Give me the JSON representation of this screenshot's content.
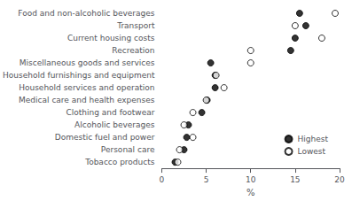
{
  "chart_data": {
    "type": "scatter",
    "orientation": "horizontal",
    "xlabel": "%",
    "categories": [
      "Food and non-alcoholic beverages",
      "Transport",
      "Current housing costs",
      "Recreation",
      "Miscellaneous goods and services",
      "Household furnishings and equipment",
      "Household services and operation",
      "Medical care and health expenses",
      "Clothing and footwear",
      "Alcoholic beverages",
      "Domestic fuel and power",
      "Personal care",
      "Tobacco products"
    ],
    "series": [
      {
        "name": "Highest",
        "color": "#000000",
        "values": [
          15.5,
          16.2,
          15.0,
          14.5,
          5.5,
          6.0,
          6.0,
          5.1,
          4.5,
          3.0,
          2.8,
          2.5,
          1.5
        ]
      },
      {
        "name": "Lowest",
        "color": "#ffffff",
        "values": [
          19.5,
          15.0,
          18.0,
          10.0,
          10.0,
          6.1,
          7.0,
          5.0,
          3.5,
          2.5,
          3.5,
          2.0,
          1.8
        ]
      }
    ],
    "xlim": [
      0,
      20
    ],
    "xticks": [
      0,
      5,
      10,
      15,
      20
    ],
    "marker": "circle",
    "grid": false,
    "legend": "lower right"
  }
}
